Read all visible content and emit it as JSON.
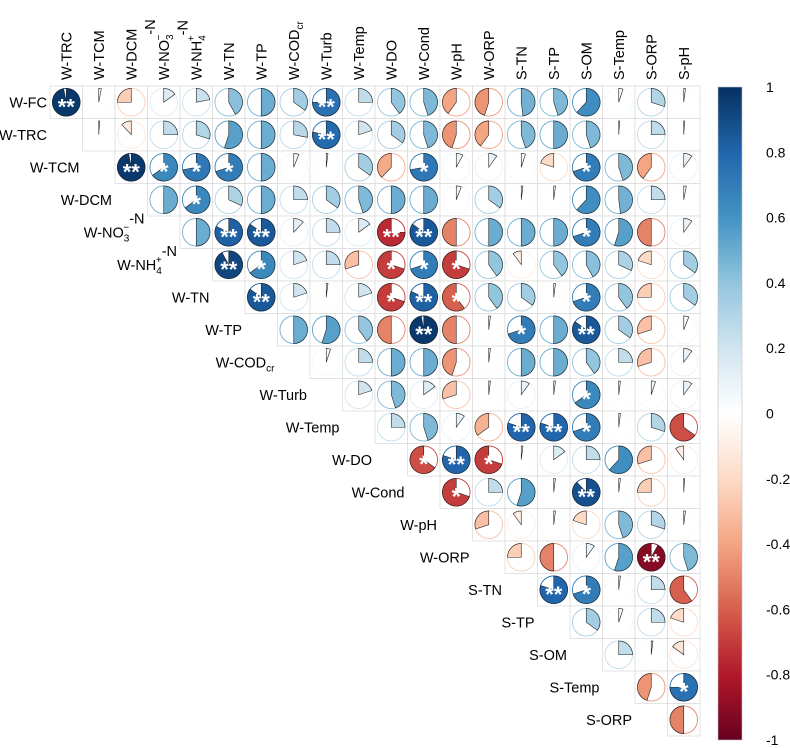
{
  "chart_data": {
    "type": "correlation-matrix",
    "style": "pie, upper triangle",
    "row_variables": [
      "W-FC",
      "W-TRC",
      "W-TCM",
      "W-DCM",
      "W-NO3--N",
      "W-NH4+-N",
      "W-TN",
      "W-TP",
      "W-CODcr",
      "W-Turb",
      "W-Temp",
      "W-DO",
      "W-Cond",
      "W-pH",
      "W-ORP",
      "S-TN",
      "S-TP",
      "S-OM",
      "S-Temp",
      "S-ORP"
    ],
    "column_variables": [
      "W-TRC",
      "W-TCM",
      "W-DCM",
      "W-NO3--N",
      "W-NH4+-N",
      "W-TN",
      "W-TP",
      "W-CODcr",
      "W-Turb",
      "W-Temp",
      "W-DO",
      "W-Cond",
      "W-pH",
      "W-ORP",
      "S-TN",
      "S-TP",
      "S-OM",
      "S-Temp",
      "S-ORP",
      "S-pH"
    ],
    "row_label_parts": [
      {
        "base": "W-FC"
      },
      {
        "base": "W-TRC"
      },
      {
        "base": "W-TCM"
      },
      {
        "base": "W-DCM"
      },
      {
        "base": "W-NO",
        "sub": "3",
        "sup": "−",
        "tail": "-N"
      },
      {
        "base": "W-NH",
        "sub": "4",
        "sup": "+",
        "tail": "-N"
      },
      {
        "base": "W-TN"
      },
      {
        "base": "W-TP"
      },
      {
        "base": "W-COD",
        "sub": "cr"
      },
      {
        "base": "W-Turb"
      },
      {
        "base": "W-Temp"
      },
      {
        "base": "W-DO"
      },
      {
        "base": "W-Cond"
      },
      {
        "base": "W-pH"
      },
      {
        "base": "W-ORP"
      },
      {
        "base": "S-TN"
      },
      {
        "base": "S-TP"
      },
      {
        "base": "S-OM"
      },
      {
        "base": "S-Temp"
      },
      {
        "base": "S-ORP"
      }
    ],
    "col_label_parts": [
      {
        "base": "W-TRC"
      },
      {
        "base": "W-TCM"
      },
      {
        "base": "W-DCM"
      },
      {
        "base": "W-NO",
        "sub": "3",
        "sup": "−",
        "tail": "-N"
      },
      {
        "base": "W-NH",
        "sub": "4",
        "sup": "+",
        "tail": "-N"
      },
      {
        "base": "W-TN"
      },
      {
        "base": "W-TP"
      },
      {
        "base": "W-COD",
        "sub": "cr"
      },
      {
        "base": "W-Turb"
      },
      {
        "base": "W-Temp"
      },
      {
        "base": "W-DO"
      },
      {
        "base": "W-Cond"
      },
      {
        "base": "W-pH"
      },
      {
        "base": "W-ORP"
      },
      {
        "base": "S-TN"
      },
      {
        "base": "S-TP"
      },
      {
        "base": "S-OM"
      },
      {
        "base": "S-Temp"
      },
      {
        "base": "S-ORP"
      },
      {
        "base": "S-pH"
      }
    ],
    "matrix": [
      [
        0.97,
        0.03,
        -0.25,
        0.15,
        0.22,
        0.42,
        0.5,
        0.35,
        0.75,
        0.25,
        0.4,
        0.45,
        -0.4,
        -0.45,
        0.48,
        0.45,
        0.62,
        0.05,
        0.3,
        0.02
      ],
      [
        null,
        0.01,
        -0.12,
        0.25,
        0.3,
        0.55,
        0.5,
        0.28,
        0.78,
        0.2,
        0.35,
        0.45,
        -0.45,
        -0.4,
        0.45,
        0.5,
        0.45,
        0.01,
        0.25,
        0.01
      ],
      [
        null,
        null,
        0.97,
        0.65,
        0.72,
        0.7,
        0.5,
        0.06,
        0.02,
        0.35,
        -0.38,
        0.72,
        0.08,
        0.1,
        0.05,
        -0.2,
        0.7,
        0.45,
        -0.4,
        0.1
      ],
      [
        null,
        null,
        null,
        0.5,
        0.65,
        0.32,
        0.5,
        0.25,
        0.35,
        0.45,
        0.5,
        0.5,
        0.06,
        0.35,
        0.02,
        0.02,
        0.62,
        0.48,
        0.25,
        0.03
      ],
      [
        null,
        null,
        null,
        null,
        0.5,
        0.82,
        0.85,
        0.12,
        0.25,
        0.15,
        -0.75,
        0.85,
        -0.5,
        0.5,
        0.5,
        0.5,
        0.7,
        0.55,
        -0.5,
        0.1
      ],
      [
        null,
        null,
        null,
        null,
        null,
        0.92,
        0.65,
        0.2,
        0.25,
        -0.3,
        -0.7,
        0.7,
        -0.7,
        0.4,
        -0.1,
        0.4,
        0.42,
        0.32,
        -0.2,
        0.35
      ],
      [
        null,
        null,
        null,
        null,
        null,
        null,
        0.85,
        0.2,
        0.02,
        0.2,
        -0.7,
        0.82,
        -0.6,
        0.4,
        0.35,
        0.02,
        0.7,
        0.4,
        -0.25,
        0.35
      ],
      [
        null,
        null,
        null,
        null,
        null,
        null,
        null,
        0.5,
        0.55,
        0.4,
        -0.5,
        0.97,
        -0.5,
        0.02,
        0.7,
        0.5,
        0.85,
        0.35,
        -0.3,
        0.06
      ],
      [
        null,
        null,
        null,
        null,
        null,
        null,
        null,
        null,
        0.05,
        0.25,
        0.5,
        0.5,
        -0.45,
        0.02,
        0.5,
        0.5,
        0.4,
        0.25,
        -0.3,
        0.1
      ],
      [
        null,
        null,
        null,
        null,
        null,
        null,
        null,
        null,
        null,
        0.2,
        0.45,
        0.15,
        -0.3,
        0.02,
        0.1,
        0.02,
        0.65,
        0.02,
        0.05,
        0.1
      ],
      [
        null,
        null,
        null,
        null,
        null,
        null,
        null,
        null,
        null,
        null,
        0.25,
        0.45,
        0.1,
        -0.35,
        0.8,
        0.8,
        0.7,
        0.02,
        0.3,
        -0.65
      ],
      [
        null,
        null,
        null,
        null,
        null,
        null,
        null,
        null,
        null,
        null,
        null,
        -0.65,
        0.8,
        -0.7,
        0.02,
        0.15,
        0.25,
        0.62,
        -0.3,
        -0.1
      ],
      [
        null,
        null,
        null,
        null,
        null,
        null,
        null,
        null,
        null,
        null,
        null,
        null,
        -0.7,
        0.25,
        0.55,
        0.02,
        0.88,
        0.02,
        -0.25,
        0.01
      ],
      [
        null,
        null,
        null,
        null,
        null,
        null,
        null,
        null,
        null,
        null,
        null,
        null,
        null,
        -0.3,
        -0.1,
        0.02,
        -0.2,
        0.45,
        0.3,
        0.02
      ],
      [
        null,
        null,
        null,
        null,
        null,
        null,
        null,
        null,
        null,
        null,
        null,
        null,
        null,
        null,
        -0.25,
        -0.5,
        0.1,
        0.55,
        -0.92,
        0.45
      ],
      [
        null,
        null,
        null,
        null,
        null,
        null,
        null,
        null,
        null,
        null,
        null,
        null,
        null,
        null,
        null,
        0.8,
        0.7,
        0.02,
        0.25,
        -0.6
      ],
      [
        null,
        null,
        null,
        null,
        null,
        null,
        null,
        null,
        null,
        null,
        null,
        null,
        null,
        null,
        null,
        null,
        0.35,
        0.05,
        0.25,
        -0.2
      ],
      [
        null,
        null,
        null,
        null,
        null,
        null,
        null,
        null,
        null,
        null,
        null,
        null,
        null,
        null,
        null,
        null,
        null,
        0.25,
        0.02,
        -0.15
      ],
      [
        null,
        null,
        null,
        null,
        null,
        null,
        null,
        null,
        null,
        null,
        null,
        null,
        null,
        null,
        null,
        null,
        null,
        null,
        -0.45,
        0.75
      ],
      [
        null,
        null,
        null,
        null,
        null,
        null,
        null,
        null,
        null,
        null,
        null,
        null,
        null,
        null,
        null,
        null,
        null,
        null,
        null,
        -0.5
      ]
    ],
    "significance": [
      [
        2,
        0,
        0,
        0,
        0,
        0,
        0,
        0,
        2,
        0,
        0,
        0,
        0,
        0,
        0,
        0,
        0,
        0,
        0,
        0
      ],
      [
        0,
        0,
        0,
        0,
        0,
        0,
        0,
        0,
        2,
        0,
        0,
        0,
        0,
        0,
        0,
        0,
        0,
        0,
        0,
        0
      ],
      [
        0,
        0,
        2,
        1,
        1,
        1,
        0,
        0,
        0,
        0,
        0,
        1,
        0,
        0,
        0,
        0,
        1,
        0,
        0,
        0
      ],
      [
        0,
        0,
        0,
        0,
        1,
        0,
        0,
        0,
        0,
        0,
        0,
        0,
        0,
        0,
        0,
        0,
        0,
        0,
        0,
        0
      ],
      [
        0,
        0,
        0,
        0,
        0,
        2,
        2,
        0,
        0,
        0,
        2,
        2,
        0,
        0,
        0,
        0,
        1,
        0,
        0,
        0
      ],
      [
        0,
        0,
        0,
        0,
        0,
        2,
        1,
        0,
        0,
        0,
        1,
        1,
        1,
        0,
        0,
        0,
        0,
        0,
        0,
        0
      ],
      [
        0,
        0,
        0,
        0,
        0,
        0,
        2,
        0,
        0,
        0,
        1,
        2,
        1,
        0,
        0,
        0,
        1,
        0,
        0,
        0
      ],
      [
        0,
        0,
        0,
        0,
        0,
        0,
        0,
        0,
        0,
        0,
        0,
        2,
        0,
        0,
        1,
        0,
        2,
        0,
        0,
        0
      ],
      [
        0,
        0,
        0,
        0,
        0,
        0,
        0,
        0,
        0,
        0,
        0,
        0,
        0,
        0,
        0,
        0,
        0,
        0,
        0,
        0
      ],
      [
        0,
        0,
        0,
        0,
        0,
        0,
        0,
        0,
        0,
        0,
        0,
        0,
        0,
        0,
        0,
        0,
        1,
        0,
        0,
        0
      ],
      [
        0,
        0,
        0,
        0,
        0,
        0,
        0,
        0,
        0,
        0,
        0,
        0,
        0,
        0,
        2,
        2,
        1,
        0,
        0,
        0
      ],
      [
        0,
        0,
        0,
        0,
        0,
        0,
        0,
        0,
        0,
        0,
        0,
        1,
        2,
        1,
        0,
        0,
        0,
        0,
        0,
        0
      ],
      [
        0,
        0,
        0,
        0,
        0,
        0,
        0,
        0,
        0,
        0,
        0,
        0,
        1,
        0,
        0,
        0,
        2,
        0,
        0,
        0
      ],
      [
        0,
        0,
        0,
        0,
        0,
        0,
        0,
        0,
        0,
        0,
        0,
        0,
        0,
        0,
        0,
        0,
        0,
        0,
        0,
        0
      ],
      [
        0,
        0,
        0,
        0,
        0,
        0,
        0,
        0,
        0,
        0,
        0,
        0,
        0,
        0,
        0,
        0,
        0,
        0,
        2,
        0
      ],
      [
        0,
        0,
        0,
        0,
        0,
        0,
        0,
        0,
        0,
        0,
        0,
        0,
        0,
        0,
        0,
        2,
        1,
        0,
        0,
        0
      ],
      [
        0,
        0,
        0,
        0,
        0,
        0,
        0,
        0,
        0,
        0,
        0,
        0,
        0,
        0,
        0,
        0,
        0,
        0,
        0,
        0
      ],
      [
        0,
        0,
        0,
        0,
        0,
        0,
        0,
        0,
        0,
        0,
        0,
        0,
        0,
        0,
        0,
        0,
        0,
        0,
        0,
        0
      ],
      [
        0,
        0,
        0,
        0,
        0,
        0,
        0,
        0,
        0,
        0,
        0,
        0,
        0,
        0,
        0,
        0,
        0,
        0,
        0,
        1
      ],
      [
        0,
        0,
        0,
        0,
        0,
        0,
        0,
        0,
        0,
        0,
        0,
        0,
        0,
        0,
        0,
        0,
        0,
        0,
        0,
        0
      ]
    ],
    "significance_marks": {
      "1": "*",
      "2": "**"
    },
    "colorbar": {
      "range": [
        -1,
        1
      ],
      "ticks": [
        "1",
        "0.8",
        "0.6",
        "0.4",
        "0.2",
        "0",
        "-0.2",
        "-0.4",
        "-0.6",
        "-0.8",
        "-1"
      ],
      "tick_values": [
        1,
        0.8,
        0.6,
        0.4,
        0.2,
        0,
        -0.2,
        -0.4,
        -0.6,
        -0.8,
        -1
      ],
      "colors": [
        "#67001F",
        "#B2182B",
        "#D6604D",
        "#F4A582",
        "#FDDBC7",
        "#FFFFFF",
        "#D1E5F0",
        "#92C5DE",
        "#4393C3",
        "#2166AC",
        "#053061"
      ]
    }
  }
}
